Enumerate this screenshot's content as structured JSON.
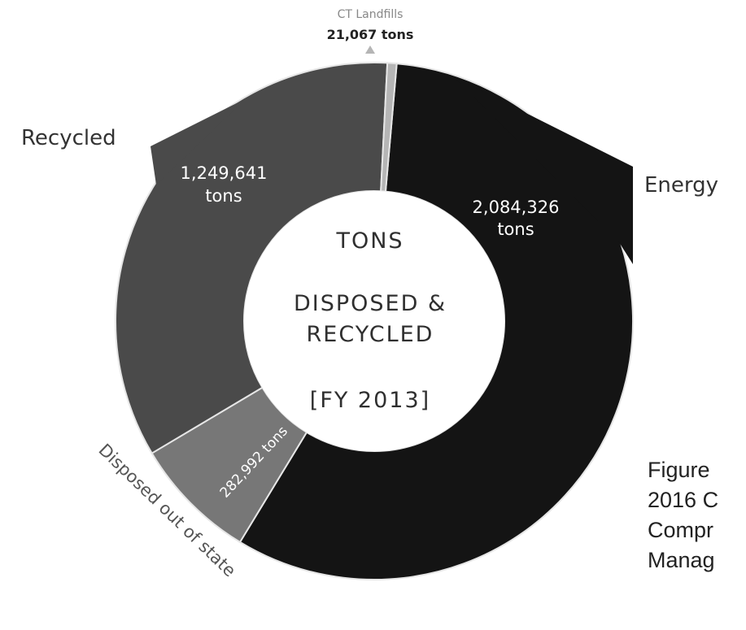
{
  "chart_data": {
    "type": "donut",
    "center_text": [
      "TONS",
      "DISPOSED &",
      "RECYCLED",
      "[FY 2013]"
    ],
    "unit": "tons",
    "slices": [
      {
        "name": "Energy",
        "label": "Energy",
        "value": 2084326,
        "value_text": "2,084,326",
        "unit_text": "tons",
        "color": "#141414"
      },
      {
        "name": "Disposed out of state",
        "label": "Disposed out of state",
        "value": 282992,
        "value_text": "282,992 tons",
        "color": "#777777"
      },
      {
        "name": "Recycled",
        "label": "Recycled",
        "value": 1249641,
        "value_text": "1,249,641",
        "unit_text": "tons",
        "color": "#4a4a4a"
      },
      {
        "name": "CT Landfills",
        "label": "CT Landfills",
        "value": 21067,
        "value_text": "21,067 tons",
        "color": "#b5b5b5"
      }
    ]
  },
  "caption_lines": [
    "Figure",
    "2016 C",
    "Compr",
    "Manag"
  ]
}
